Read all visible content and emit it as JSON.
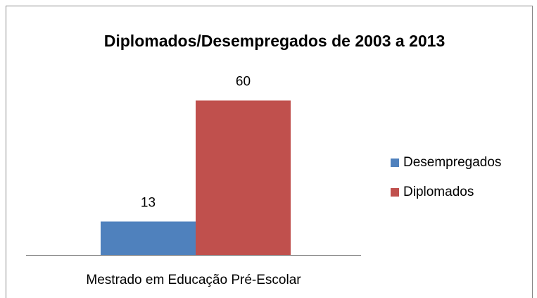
{
  "chart_data": {
    "type": "bar",
    "title": "Diplomados/Desempregados de 2003 a 2013",
    "categories": [
      "Mestrado em Educação Pré-Escolar"
    ],
    "series": [
      {
        "name": "Desempregados",
        "color": "#4f81bd",
        "values": [
          13
        ]
      },
      {
        "name": "Diplomados",
        "color": "#c0504d",
        "values": [
          60
        ]
      }
    ],
    "ylim": [
      0,
      70
    ],
    "legend": "right"
  }
}
